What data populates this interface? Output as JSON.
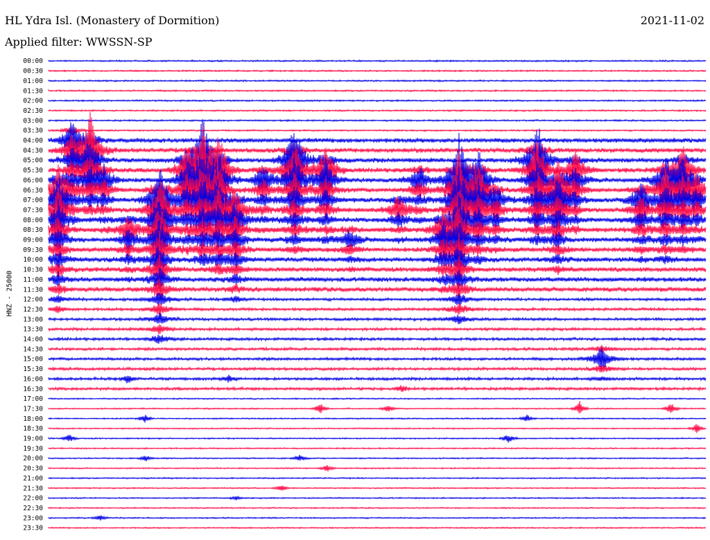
{
  "header": {
    "station": "HL Ydra Isl. (Monastery of Dormition)",
    "filter": "Applied filter: WWSSN-SP",
    "date": "2021-11-02"
  },
  "side_label": "HNZ - 25000",
  "colors": {
    "trace_a": "#0000e6",
    "trace_b": "#ff0a47",
    "text": "#000000",
    "background": "#ffffff"
  },
  "chart_data": {
    "type": "helicorder",
    "title": "HL Ydra Isl. (Monastery of Dormition)",
    "subtitle": "Applied filter: WWSSN-SP",
    "date": "2021-11-02",
    "ylabel": "HNZ - 25000",
    "rows": [
      "00:00",
      "00:30",
      "01:00",
      "01:30",
      "02:00",
      "02:30",
      "03:00",
      "03:30",
      "04:00",
      "04:30",
      "05:00",
      "05:30",
      "06:00",
      "06:30",
      "07:00",
      "07:30",
      "08:00",
      "08:30",
      "09:00",
      "09:30",
      "10:00",
      "10:30",
      "11:00",
      "11:30",
      "12:00",
      "12:30",
      "13:00",
      "13:30",
      "14:00",
      "14:30",
      "15:00",
      "15:30",
      "16:00",
      "16:30",
      "17:00",
      "17:30",
      "18:00",
      "18:30",
      "19:00",
      "19:30",
      "20:00",
      "20:30",
      "21:00",
      "21:30",
      "22:00",
      "22:30",
      "23:00",
      "23:30"
    ],
    "row_colors": [
      "blue",
      "red"
    ],
    "minutes_per_row": 30,
    "grid": false
  }
}
